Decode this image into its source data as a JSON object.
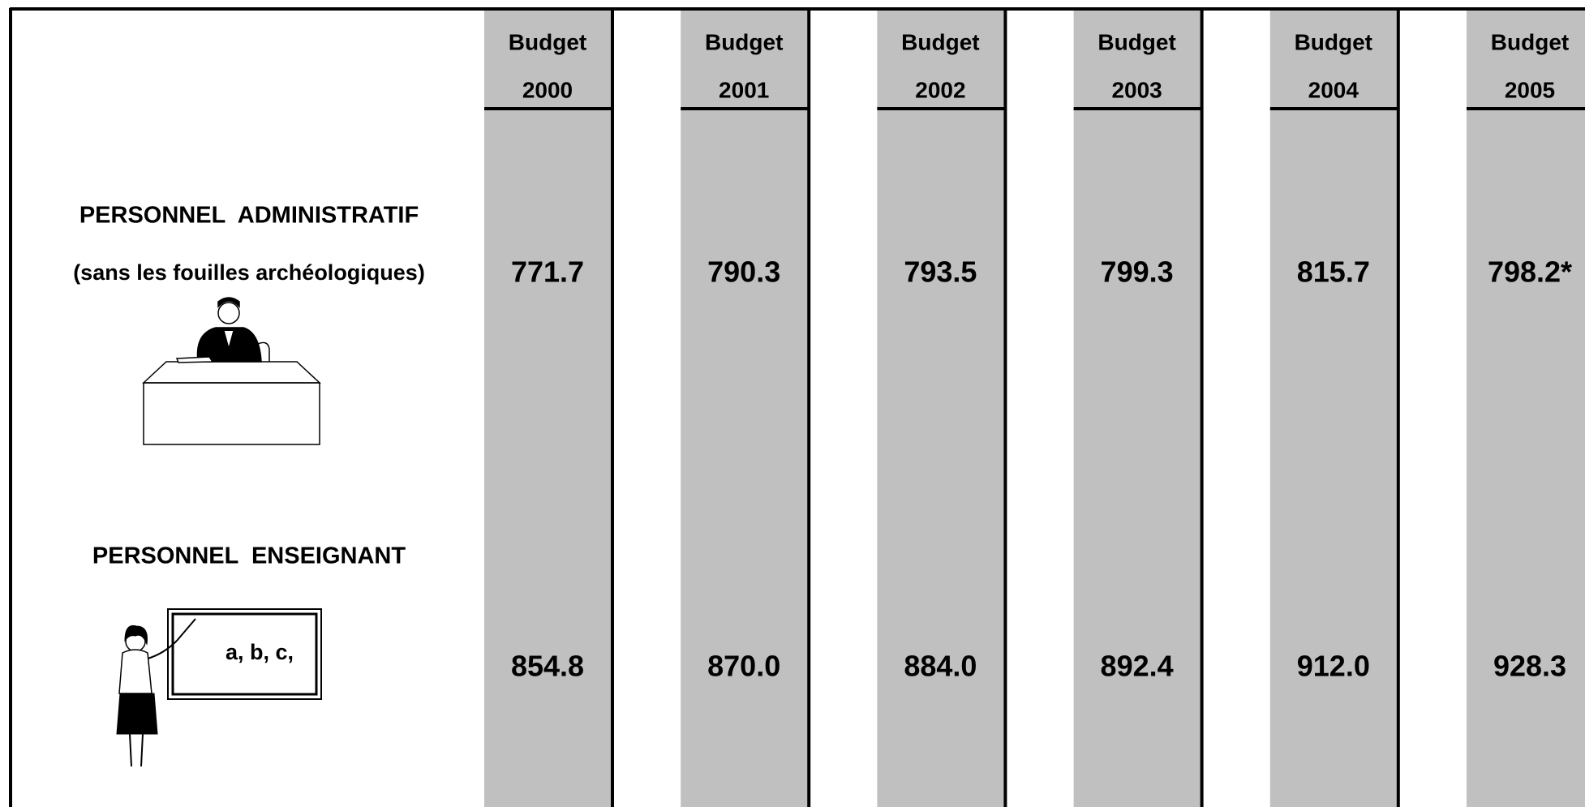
{
  "columns": [
    {
      "line1": "Budget",
      "line2": "2000"
    },
    {
      "line1": "Budget",
      "line2": "2001"
    },
    {
      "line1": "Budget",
      "line2": "2002"
    },
    {
      "line1": "Budget",
      "line2": "2003"
    },
    {
      "line1": "Budget",
      "line2": "2004"
    },
    {
      "line1": "Budget",
      "line2": "2005"
    }
  ],
  "rows": [
    {
      "label": "PERSONNEL  ADMINISTRATIF",
      "sublabel": "(sans les fouilles archéologiques)",
      "values": [
        "771.7",
        "790.3",
        "793.5",
        "799.3",
        "815.7",
        "798.2*"
      ]
    },
    {
      "label": "PERSONNEL  ENSEIGNANT",
      "board_text": "a, b, c,",
      "values": [
        "854.8",
        "870.0",
        "884.0",
        "892.4",
        "912.0",
        "928.3"
      ]
    }
  ]
}
